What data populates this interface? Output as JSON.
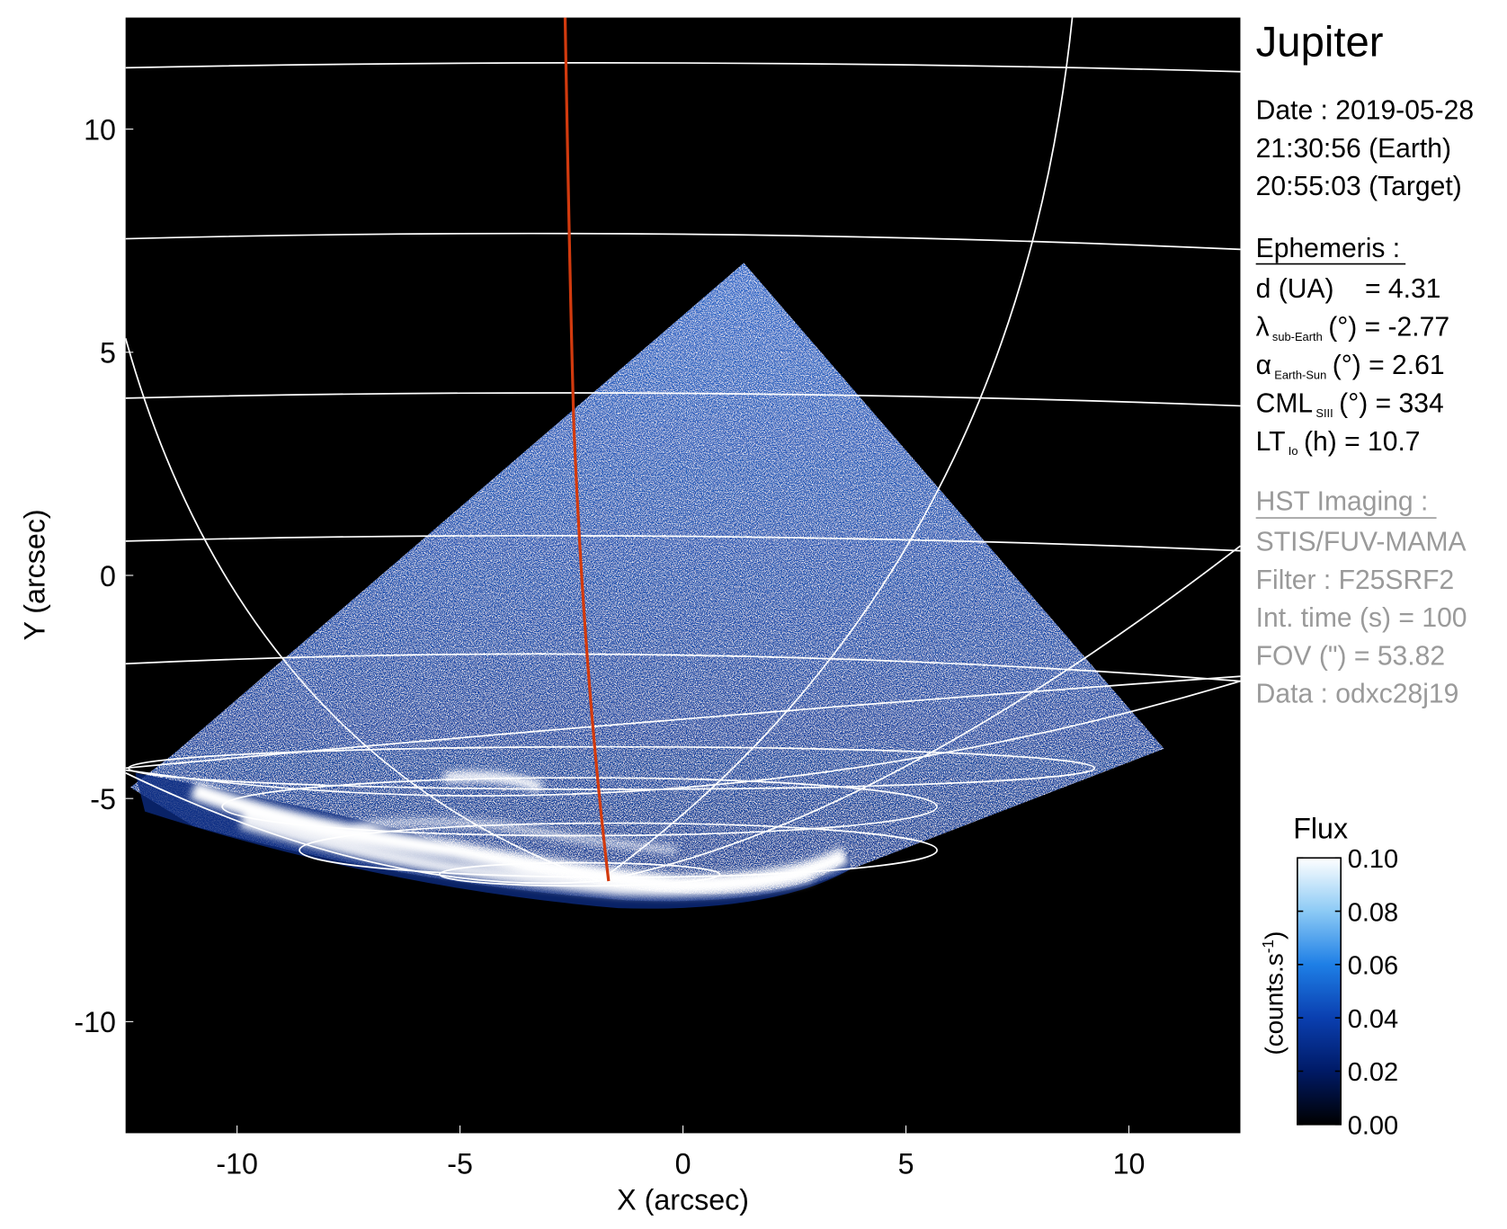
{
  "chart_data": {
    "type": "image",
    "xlabel": "X (arcsec)",
    "ylabel": "Y (arcsec)",
    "xlim": [
      -12.5,
      12.5
    ],
    "ylim": [
      -12.5,
      12.5
    ],
    "xticks": [
      -10,
      -5,
      0,
      5,
      10
    ],
    "yticks": [
      -10,
      -5,
      0,
      5,
      10
    ],
    "target": "Jupiter",
    "date_lines": [
      "Date : 2019-05-28",
      "21:30:56 (Earth)",
      "20:55:03 (Target)"
    ],
    "ephemeris_title": "Ephemeris :",
    "ephemeris": [
      {
        "text": "d (UA)",
        "rest": "= 4.31"
      },
      {
        "text": "λ",
        "sub": "sub-Earth",
        "rest": "(°) = -2.77"
      },
      {
        "text": "α",
        "sub": "Earth-Sun",
        "rest": "(°) = 2.61"
      },
      {
        "text": "CML",
        "sub": "SIII",
        "rest": "(°) = 334"
      },
      {
        "text": "LT",
        "sub": "Io",
        "rest": "(h) = 10.7"
      }
    ],
    "imaging_title": "HST Imaging :",
    "imaging": [
      "STIS/FUV-MAMA",
      "Filter : F25SRF2",
      "Int. time (s) = 100",
      "FOV (\") = 53.82",
      "Data : odxc28j19"
    ],
    "colorbar": {
      "label": "Flux",
      "unit": "(counts.s",
      "unit_sup": "-1",
      "unit_end": ")",
      "lim": [
        0,
        0.1
      ],
      "ticks": [
        {
          "value": 0,
          "label": "0.00"
        },
        {
          "value": 0.02,
          "label": "0.02"
        },
        {
          "value": 0.04,
          "label": "0.04"
        },
        {
          "value": 0.06,
          "label": "0.06"
        },
        {
          "value": 0.08,
          "label": "0.08"
        },
        {
          "value": 0.1,
          "label": "0.10"
        }
      ],
      "colors": [
        "#000000",
        "#001a66",
        "#0a3fb0",
        "#1e7fe6",
        "#8ccaf5",
        "#ffffff"
      ]
    }
  }
}
